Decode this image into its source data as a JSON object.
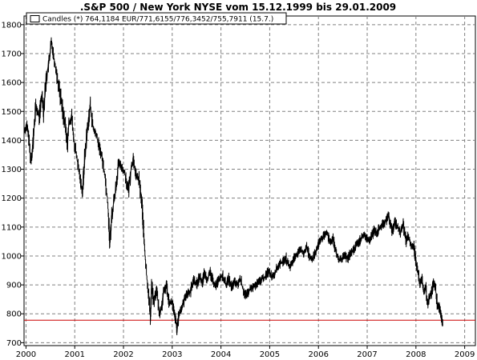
{
  "chart_data": {
    "type": "line",
    "title": ".S&P 500 / New York NYSE vom 15.12.1999 bis 29.01.2009",
    "legend": {
      "placement": "top-left",
      "label": "Candles (*) 764,1184 EUR/771,6155/776,3452/755,7911 (15.7.)"
    },
    "x_axis": {
      "range": [
        1999.96,
        2009.22
      ],
      "ticks": [
        {
          "label": "2000",
          "value": 2000
        },
        {
          "label": "2001",
          "value": 2001
        },
        {
          "label": "2002",
          "value": 2002
        },
        {
          "label": "2003",
          "value": 2003
        },
        {
          "label": "2004",
          "value": 2004
        },
        {
          "label": "2005",
          "value": 2005
        },
        {
          "label": "2006",
          "value": 2006
        },
        {
          "label": "2007",
          "value": 2007
        },
        {
          "label": "2008",
          "value": 2008
        },
        {
          "label": "2009",
          "value": 2009
        }
      ]
    },
    "y_axis": {
      "range": [
        690,
        1830
      ],
      "ticks": [
        {
          "label": "700",
          "value": 700
        },
        {
          "label": "800",
          "value": 800
        },
        {
          "label": "900",
          "value": 900
        },
        {
          "label": "1000",
          "value": 1000
        },
        {
          "label": "1100",
          "value": 1100
        },
        {
          "label": "1200",
          "value": 1200
        },
        {
          "label": "1300",
          "value": 1300
        },
        {
          "label": "1400",
          "value": 1400
        },
        {
          "label": "1500",
          "value": 1500
        },
        {
          "label": "1600",
          "value": 1600
        },
        {
          "label": "1700",
          "value": 1700
        },
        {
          "label": "1800",
          "value": 1800
        }
      ]
    },
    "grid": true,
    "reference_line": {
      "value": 778,
      "color": "#cc0000"
    },
    "series_color": "#000000",
    "series": [
      {
        "points": [
          [
            1999.96,
            1430
          ],
          [
            2000.02,
            1450
          ],
          [
            2000.06,
            1400
          ],
          [
            2000.1,
            1330
          ],
          [
            2000.14,
            1380
          ],
          [
            2000.2,
            1520
          ],
          [
            2000.27,
            1480
          ],
          [
            2000.33,
            1560
          ],
          [
            2000.36,
            1500
          ],
          [
            2000.42,
            1620
          ],
          [
            2000.48,
            1680
          ],
          [
            2000.52,
            1740
          ],
          [
            2000.56,
            1700
          ],
          [
            2000.62,
            1640
          ],
          [
            2000.7,
            1560
          ],
          [
            2000.8,
            1460
          ],
          [
            2000.85,
            1380
          ],
          [
            2000.88,
            1460
          ],
          [
            2000.94,
            1480
          ],
          [
            2000.98,
            1400
          ],
          [
            2001.06,
            1320
          ],
          [
            2001.12,
            1260
          ],
          [
            2001.16,
            1220
          ],
          [
            2001.2,
            1330
          ],
          [
            2001.26,
            1440
          ],
          [
            2001.32,
            1520
          ],
          [
            2001.38,
            1440
          ],
          [
            2001.44,
            1420
          ],
          [
            2001.5,
            1380
          ],
          [
            2001.56,
            1340
          ],
          [
            2001.62,
            1280
          ],
          [
            2001.68,
            1180
          ],
          [
            2001.72,
            1040
          ],
          [
            2001.76,
            1140
          ],
          [
            2001.84,
            1230
          ],
          [
            2001.9,
            1320
          ],
          [
            2001.96,
            1310
          ],
          [
            2002.04,
            1280
          ],
          [
            2002.1,
            1220
          ],
          [
            2002.16,
            1310
          ],
          [
            2002.2,
            1330
          ],
          [
            2002.26,
            1280
          ],
          [
            2002.32,
            1260
          ],
          [
            2002.38,
            1180
          ],
          [
            2002.42,
            1060
          ],
          [
            2002.46,
            960
          ],
          [
            2002.52,
            860
          ],
          [
            2002.55,
            790
          ],
          [
            2002.58,
            900
          ],
          [
            2002.62,
            840
          ],
          [
            2002.68,
            880
          ],
          [
            2002.74,
            800
          ],
          [
            2002.78,
            820
          ],
          [
            2002.82,
            870
          ],
          [
            2002.88,
            900
          ],
          [
            2002.94,
            840
          ],
          [
            2003.0,
            840
          ],
          [
            2003.04,
            800
          ],
          [
            2003.08,
            770
          ],
          [
            2003.1,
            740
          ],
          [
            2003.14,
            800
          ],
          [
            2003.2,
            820
          ],
          [
            2003.26,
            860
          ],
          [
            2003.32,
            870
          ],
          [
            2003.38,
            880
          ],
          [
            2003.44,
            920
          ],
          [
            2003.5,
            900
          ],
          [
            2003.56,
            930
          ],
          [
            2003.62,
            910
          ],
          [
            2003.66,
            940
          ],
          [
            2003.72,
            920
          ],
          [
            2003.78,
            940
          ],
          [
            2003.84,
            910
          ],
          [
            2003.9,
            900
          ],
          [
            2003.96,
            920
          ],
          [
            2004.04,
            930
          ],
          [
            2004.1,
            900
          ],
          [
            2004.16,
            920
          ],
          [
            2004.22,
            890
          ],
          [
            2004.28,
            910
          ],
          [
            2004.34,
            900
          ],
          [
            2004.4,
            920
          ],
          [
            2004.46,
            880
          ],
          [
            2004.52,
            860
          ],
          [
            2004.58,
            880
          ],
          [
            2004.64,
            890
          ],
          [
            2004.72,
            900
          ],
          [
            2004.78,
            910
          ],
          [
            2004.84,
            920
          ],
          [
            2004.92,
            930
          ],
          [
            2004.98,
            950
          ],
          [
            2005.04,
            930
          ],
          [
            2005.1,
            940
          ],
          [
            2005.16,
            960
          ],
          [
            2005.22,
            975
          ],
          [
            2005.28,
            980
          ],
          [
            2005.34,
            990
          ],
          [
            2005.4,
            960
          ],
          [
            2005.46,
            975
          ],
          [
            2005.52,
            1000
          ],
          [
            2005.58,
            1010
          ],
          [
            2005.64,
            1020
          ],
          [
            2005.7,
            1010
          ],
          [
            2005.76,
            1030
          ],
          [
            2005.82,
            1000
          ],
          [
            2005.88,
            990
          ],
          [
            2005.94,
            1010
          ],
          [
            2006.0,
            1040
          ],
          [
            2006.06,
            1060
          ],
          [
            2006.12,
            1070
          ],
          [
            2006.18,
            1080
          ],
          [
            2006.24,
            1050
          ],
          [
            2006.3,
            1060
          ],
          [
            2006.36,
            1010
          ],
          [
            2006.42,
            985
          ],
          [
            2006.48,
            990
          ],
          [
            2006.54,
            1000
          ],
          [
            2006.6,
            990
          ],
          [
            2006.66,
            1010
          ],
          [
            2006.72,
            1020
          ],
          [
            2006.78,
            1040
          ],
          [
            2006.84,
            1050
          ],
          [
            2006.9,
            1070
          ],
          [
            2006.96,
            1070
          ],
          [
            2007.02,
            1050
          ],
          [
            2007.08,
            1060
          ],
          [
            2007.14,
            1090
          ],
          [
            2007.2,
            1080
          ],
          [
            2007.26,
            1100
          ],
          [
            2007.32,
            1110
          ],
          [
            2007.38,
            1120
          ],
          [
            2007.44,
            1140
          ],
          [
            2007.48,
            1110
          ],
          [
            2007.52,
            1080
          ],
          [
            2007.56,
            1120
          ],
          [
            2007.62,
            1100
          ],
          [
            2007.68,
            1080
          ],
          [
            2007.74,
            1110
          ],
          [
            2007.8,
            1050
          ],
          [
            2007.84,
            1070
          ],
          [
            2007.9,
            1040
          ],
          [
            2007.96,
            1030
          ],
          [
            2008.0,
            980
          ],
          [
            2008.04,
            950
          ],
          [
            2008.08,
            900
          ],
          [
            2008.12,
            920
          ],
          [
            2008.16,
            880
          ],
          [
            2008.2,
            890
          ],
          [
            2008.24,
            830
          ],
          [
            2008.28,
            860
          ],
          [
            2008.32,
            870
          ],
          [
            2008.36,
            910
          ],
          [
            2008.4,
            890
          ],
          [
            2008.44,
            830
          ],
          [
            2008.48,
            820
          ],
          [
            2008.52,
            790
          ],
          [
            2008.54,
            770
          ],
          [
            2008.55,
            764
          ]
        ]
      }
    ]
  }
}
